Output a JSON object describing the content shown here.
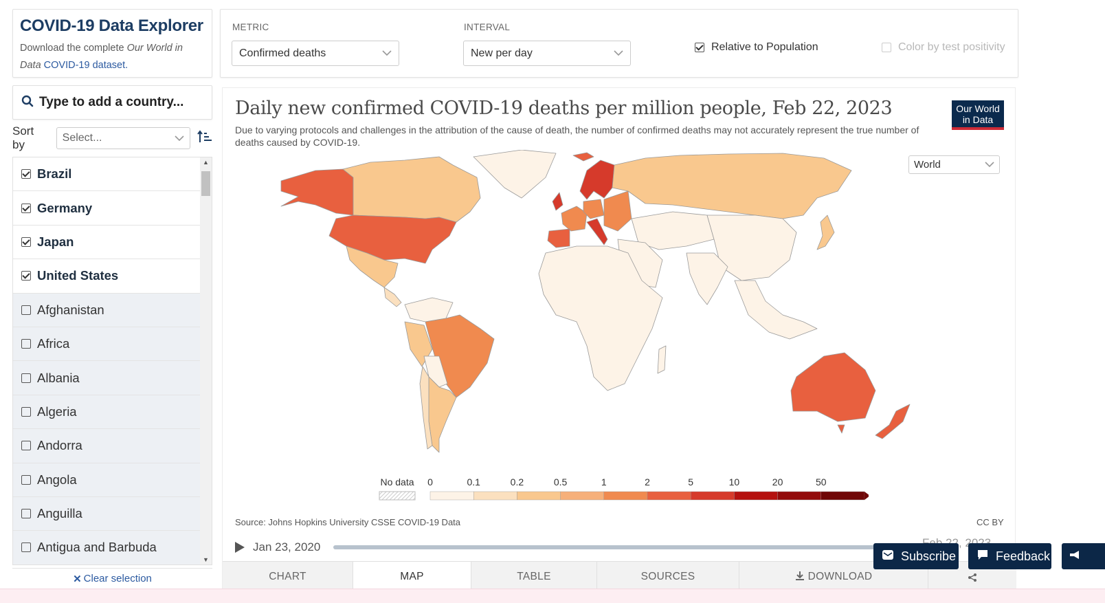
{
  "app": {
    "title": "COVID-19 Data Explorer",
    "subtitle_prefix": "Download the complete ",
    "subtitle_italic": "Our World in Data",
    "subtitle_link": "COVID-19 dataset."
  },
  "search": {
    "placeholder": "Type to add a country..."
  },
  "sort": {
    "label": "Sort by",
    "selected": "Select..."
  },
  "countries": [
    {
      "name": "Brazil",
      "checked": true
    },
    {
      "name": "Germany",
      "checked": true
    },
    {
      "name": "Japan",
      "checked": true
    },
    {
      "name": "United States",
      "checked": true
    },
    {
      "name": "Afghanistan",
      "checked": false
    },
    {
      "name": "Africa",
      "checked": false
    },
    {
      "name": "Albania",
      "checked": false
    },
    {
      "name": "Algeria",
      "checked": false
    },
    {
      "name": "Andorra",
      "checked": false
    },
    {
      "name": "Angola",
      "checked": false
    },
    {
      "name": "Anguilla",
      "checked": false
    },
    {
      "name": "Antigua and Barbuda",
      "checked": false
    }
  ],
  "clear_selection": "Clear selection",
  "controls": {
    "metric_label": "METRIC",
    "metric_value": "Confirmed deaths",
    "interval_label": "INTERVAL",
    "interval_value": "New per day",
    "relative_label": "Relative to Population",
    "relative_checked": true,
    "color_label": "Color by test positivity",
    "color_checked": false
  },
  "chart": {
    "title": "Daily new confirmed COVID-19 deaths per million people, Feb 22, 2023",
    "subtitle": "Due to varying protocols and challenges in the attribution of the cause of death, the number of confirmed deaths may not accurately represent the true number of deaths caused by COVID-19.",
    "logo_line1": "Our World",
    "logo_line2": "in Data",
    "region": "World",
    "source": "Source: Johns Hopkins University CSSE COVID-19 Data",
    "license": "CC BY",
    "timeline_start": "Jan 23, 2020",
    "timeline_end": "Feb 22, 2023"
  },
  "legend": {
    "no_data": "No data",
    "bins": [
      {
        "label": "0",
        "color": "#fdf3e7"
      },
      {
        "label": "0.1",
        "color": "#fbe0bf"
      },
      {
        "label": "0.2",
        "color": "#f9c88e"
      },
      {
        "label": "0.5",
        "color": "#f6b07a"
      },
      {
        "label": "1",
        "color": "#f08a4f"
      },
      {
        "label": "2",
        "color": "#e8603f"
      },
      {
        "label": "5",
        "color": "#d63a2b"
      },
      {
        "label": "10",
        "color": "#b5110f"
      },
      {
        "label": "20",
        "color": "#930b0b"
      },
      {
        "label": "50",
        "color": "#700707"
      }
    ]
  },
  "tabs": [
    "CHART",
    "MAP",
    "TABLE",
    "SOURCES",
    "DOWNLOAD"
  ],
  "active_tab": "MAP",
  "buttons": {
    "subscribe": "Subscribe",
    "feedback": "Feedback"
  }
}
